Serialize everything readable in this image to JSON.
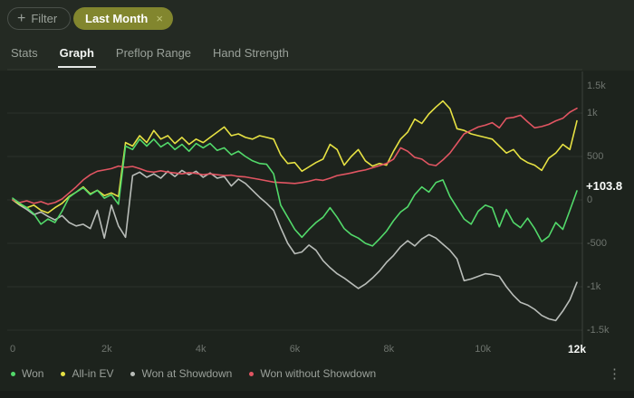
{
  "header": {
    "filter_label": "Filter",
    "active_filter": {
      "label": "Last Month",
      "close_symbol": "×"
    },
    "plus_symbol": "+"
  },
  "tabs": [
    {
      "label": "Stats",
      "active": false
    },
    {
      "label": "Graph",
      "active": true
    },
    {
      "label": "Preflop Range",
      "active": false
    },
    {
      "label": "Hand Strength",
      "active": false
    }
  ],
  "colors": {
    "chip_background": "#82862e",
    "panel_background": "#1d231d",
    "page_background": "#242a23"
  },
  "chart_data": {
    "type": "line",
    "title": "",
    "xlabel": "",
    "ylabel": "",
    "grid": true,
    "legend_position": "bottom",
    "xlim": [
      0,
      12000
    ],
    "ylim": [
      -1500,
      1500
    ],
    "x_step": 150,
    "x_ticks": [
      {
        "value": 0,
        "label": "0"
      },
      {
        "value": 2000,
        "label": "2k"
      },
      {
        "value": 4000,
        "label": "4k"
      },
      {
        "value": 6000,
        "label": "6k"
      },
      {
        "value": 8000,
        "label": "8k"
      },
      {
        "value": 10000,
        "label": "10k"
      },
      {
        "value": 12000,
        "label": "12k",
        "emphasis": true
      }
    ],
    "y_ticks": [
      {
        "value": 1500,
        "label": "1.5k"
      },
      {
        "value": 1000,
        "label": "1k"
      },
      {
        "value": 500,
        "label": "500"
      },
      {
        "value": 0,
        "label": "0"
      },
      {
        "value": -500,
        "label": "-500"
      },
      {
        "value": -1000,
        "label": "-1k"
      },
      {
        "value": -1500,
        "label": "-1.5k"
      }
    ],
    "current_value_label": "+103.8",
    "series": [
      {
        "name": "Won",
        "color": "#52d96a",
        "values": [
          20,
          -40,
          -90,
          -160,
          -280,
          -220,
          -260,
          -130,
          30,
          90,
          140,
          60,
          110,
          20,
          60,
          -50,
          620,
          580,
          700,
          620,
          700,
          610,
          660,
          580,
          640,
          560,
          650,
          600,
          650,
          570,
          600,
          520,
          560,
          500,
          450,
          420,
          410,
          300,
          -60,
          -200,
          -340,
          -430,
          -340,
          -260,
          -200,
          -90,
          -200,
          -330,
          -400,
          -440,
          -500,
          -530,
          -450,
          -360,
          -240,
          -140,
          -80,
          60,
          150,
          90,
          200,
          230,
          40,
          -90,
          -220,
          -280,
          -130,
          -60,
          -90,
          -310,
          -110,
          -260,
          -320,
          -210,
          -330,
          -480,
          -420,
          -260,
          -340,
          -120,
          103.8
        ]
      },
      {
        "name": "All-in EV",
        "color": "#e6e143",
        "values": [
          0,
          -50,
          -90,
          -60,
          -120,
          -150,
          -90,
          -40,
          40,
          90,
          150,
          70,
          110,
          50,
          80,
          40,
          660,
          620,
          740,
          660,
          800,
          700,
          740,
          650,
          720,
          640,
          700,
          660,
          720,
          780,
          840,
          740,
          760,
          720,
          700,
          740,
          720,
          700,
          520,
          420,
          430,
          330,
          380,
          430,
          470,
          640,
          580,
          400,
          500,
          580,
          450,
          390,
          420,
          400,
          560,
          700,
          780,
          930,
          880,
          990,
          1070,
          1140,
          1050,
          820,
          800,
          760,
          740,
          720,
          700,
          620,
          540,
          580,
          480,
          430,
          400,
          340,
          480,
          540,
          640,
          580,
          910
        ]
      },
      {
        "name": "Won at Showdown",
        "color": "#b9bdb9",
        "values": [
          0,
          -60,
          -110,
          -170,
          -140,
          -190,
          -230,
          -180,
          -260,
          -300,
          -280,
          -330,
          -120,
          -440,
          -60,
          -300,
          -430,
          280,
          320,
          260,
          300,
          250,
          330,
          270,
          340,
          290,
          330,
          260,
          310,
          250,
          270,
          160,
          240,
          190,
          110,
          30,
          -40,
          -120,
          -320,
          -500,
          -620,
          -600,
          -520,
          -580,
          -700,
          -780,
          -850,
          -900,
          -960,
          -1020,
          -970,
          -900,
          -820,
          -720,
          -640,
          -540,
          -470,
          -530,
          -450,
          -400,
          -440,
          -510,
          -580,
          -680,
          -930,
          -910,
          -880,
          -850,
          -860,
          -880,
          -1000,
          -1100,
          -1180,
          -1210,
          -1260,
          -1330,
          -1370,
          -1390,
          -1280,
          -1150,
          -950
        ]
      },
      {
        "name": "Won without Showdown",
        "color": "#e15562",
        "values": [
          0,
          -30,
          -10,
          -40,
          -20,
          -50,
          -30,
          10,
          80,
          150,
          230,
          290,
          330,
          345,
          360,
          390,
          375,
          385,
          360,
          330,
          320,
          335,
          320,
          310,
          300,
          315,
          305,
          290,
          300,
          290,
          280,
          285,
          270,
          265,
          250,
          235,
          220,
          205,
          200,
          195,
          190,
          200,
          215,
          235,
          225,
          250,
          280,
          295,
          310,
          330,
          345,
          370,
          395,
          420,
          470,
          600,
          560,
          490,
          470,
          410,
          395,
          460,
          540,
          650,
          760,
          800,
          840,
          860,
          890,
          830,
          940,
          950,
          975,
          900,
          830,
          845,
          870,
          910,
          940,
          1010,
          1055
        ]
      }
    ]
  },
  "footer": {
    "kebab_symbol": "⋮"
  }
}
